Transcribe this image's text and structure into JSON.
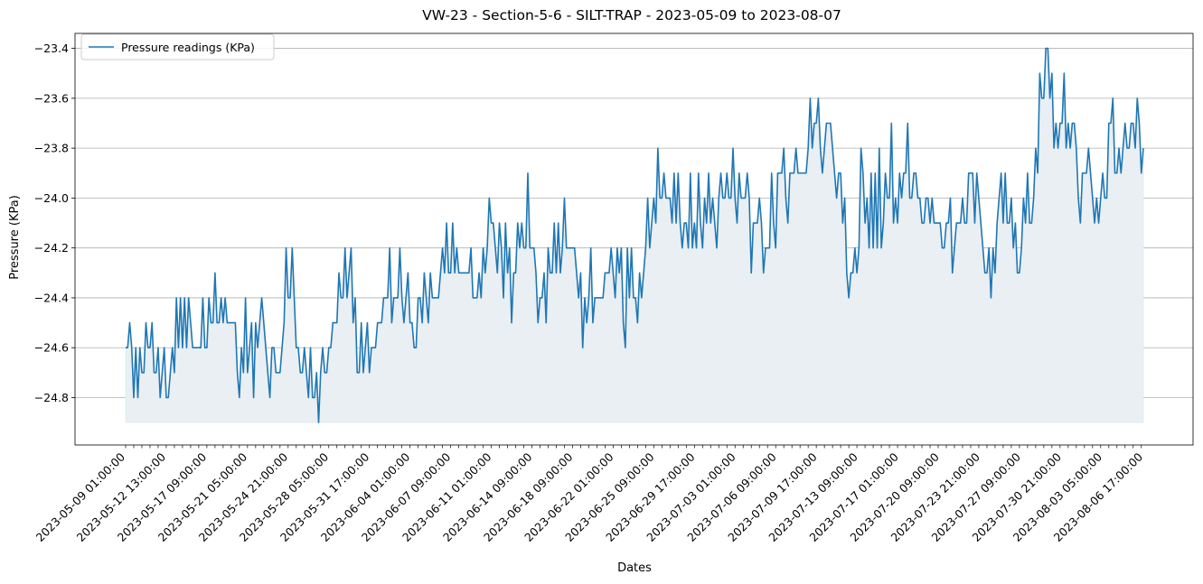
{
  "chart_data": {
    "type": "line",
    "title": "VW-23 - Section-5-6 - SILT-TRAP - 2023-05-09 to 2023-08-07",
    "xlabel": "Dates",
    "ylabel": "Pressure (KPa)",
    "legend_position": "top-left",
    "grid": "horizontal",
    "fill_below": true,
    "ylim": [
      -24.99,
      -23.34
    ],
    "yticks": [
      -24.8,
      -24.6,
      -24.4,
      -24.2,
      -24.0,
      -23.8,
      -23.6,
      -23.4
    ],
    "ytick_labels": [
      "−24.8",
      "−24.6",
      "−24.4",
      "−24.2",
      "−24.0",
      "−23.8",
      "−23.6",
      "−23.4"
    ],
    "xtick_labels": [
      "2023-05-09 01:00:00",
      "2023-05-12 13:00:00",
      "2023-05-17 09:00:00",
      "2023-05-21 05:00:00",
      "2023-05-24 21:00:00",
      "2023-05-28 05:00:00",
      "2023-05-31 17:00:00",
      "2023-06-04 01:00:00",
      "2023-06-07 09:00:00",
      "2023-06-11 01:00:00",
      "2023-06-14 09:00:00",
      "2023-06-18 09:00:00",
      "2023-06-22 01:00:00",
      "2023-06-25 09:00:00",
      "2023-06-29 17:00:00",
      "2023-07-03 01:00:00",
      "2023-07-06 09:00:00",
      "2023-07-09 17:00:00",
      "2023-07-13 09:00:00",
      "2023-07-17 01:00:00",
      "2023-07-20 09:00:00",
      "2023-07-23 21:00:00",
      "2023-07-27 09:00:00",
      "2023-07-30 21:00:00",
      "2023-08-03 05:00:00",
      "2023-08-06 17:00:00"
    ],
    "colors": {
      "line": "#1f77b4",
      "fill": "#e9eff2",
      "grid": "#b0b0b0"
    },
    "series": [
      {
        "name": "Pressure readings (KPa)",
        "values": [
          -24.6,
          -24.6,
          -24.5,
          -24.6,
          -24.8,
          -24.6,
          -24.8,
          -24.6,
          -24.7,
          -24.7,
          -24.5,
          -24.6,
          -24.6,
          -24.5,
          -24.7,
          -24.7,
          -24.6,
          -24.8,
          -24.7,
          -24.6,
          -24.8,
          -24.8,
          -24.7,
          -24.6,
          -24.7,
          -24.4,
          -24.6,
          -24.4,
          -24.6,
          -24.4,
          -24.6,
          -24.4,
          -24.5,
          -24.6,
          -24.6,
          -24.6,
          -24.6,
          -24.6,
          -24.4,
          -24.6,
          -24.6,
          -24.4,
          -24.5,
          -24.5,
          -24.3,
          -24.5,
          -24.5,
          -24.4,
          -24.5,
          -24.4,
          -24.5,
          -24.5,
          -24.5,
          -24.5,
          -24.5,
          -24.7,
          -24.8,
          -24.6,
          -24.7,
          -24.4,
          -24.7,
          -24.6,
          -24.5,
          -24.8,
          -24.5,
          -24.6,
          -24.5,
          -24.4,
          -24.5,
          -24.6,
          -24.7,
          -24.8,
          -24.6,
          -24.6,
          -24.7,
          -24.7,
          -24.7,
          -24.6,
          -24.5,
          -24.2,
          -24.4,
          -24.4,
          -24.2,
          -24.4,
          -24.6,
          -24.6,
          -24.7,
          -24.7,
          -24.6,
          -24.7,
          -24.8,
          -24.6,
          -24.8,
          -24.8,
          -24.7,
          -24.9,
          -24.7,
          -24.6,
          -24.7,
          -24.7,
          -24.6,
          -24.6,
          -24.5,
          -24.5,
          -24.5,
          -24.3,
          -24.4,
          -24.4,
          -24.2,
          -24.4,
          -24.3,
          -24.2,
          -24.5,
          -24.4,
          -24.7,
          -24.7,
          -24.5,
          -24.7,
          -24.6,
          -24.5,
          -24.7,
          -24.6,
          -24.6,
          -24.6,
          -24.5,
          -24.5,
          -24.5,
          -24.4,
          -24.4,
          -24.4,
          -24.2,
          -24.5,
          -24.4,
          -24.4,
          -24.4,
          -24.2,
          -24.4,
          -24.5,
          -24.4,
          -24.3,
          -24.5,
          -24.5,
          -24.6,
          -24.6,
          -24.4,
          -24.4,
          -24.5,
          -24.3,
          -24.4,
          -24.5,
          -24.3,
          -24.4,
          -24.4,
          -24.4,
          -24.4,
          -24.3,
          -24.2,
          -24.3,
          -24.1,
          -24.3,
          -24.3,
          -24.1,
          -24.3,
          -24.2,
          -24.3,
          -24.3,
          -24.3,
          -24.3,
          -24.3,
          -24.3,
          -24.2,
          -24.4,
          -24.4,
          -24.4,
          -24.3,
          -24.4,
          -24.2,
          -24.3,
          -24.2,
          -24.0,
          -24.1,
          -24.1,
          -24.2,
          -24.3,
          -24.1,
          -24.2,
          -24.4,
          -24.1,
          -24.3,
          -24.2,
          -24.5,
          -24.3,
          -24.3,
          -24.1,
          -24.2,
          -24.1,
          -24.2,
          -24.2,
          -23.9,
          -24.2,
          -24.2,
          -24.2,
          -24.3,
          -24.5,
          -24.4,
          -24.4,
          -24.3,
          -24.5,
          -24.2,
          -24.3,
          -24.3,
          -24.1,
          -24.3,
          -24.1,
          -24.3,
          -24.2,
          -24.0,
          -24.2,
          -24.2,
          -24.2,
          -24.2,
          -24.2,
          -24.3,
          -24.4,
          -24.3,
          -24.6,
          -24.4,
          -24.5,
          -24.4,
          -24.2,
          -24.5,
          -24.4,
          -24.4,
          -24.4,
          -24.4,
          -24.4,
          -24.3,
          -24.3,
          -24.3,
          -24.2,
          -24.3,
          -24.4,
          -24.2,
          -24.3,
          -24.2,
          -24.5,
          -24.6,
          -24.2,
          -24.4,
          -24.2,
          -24.4,
          -24.4,
          -24.5,
          -24.3,
          -24.4,
          -24.3,
          -24.2,
          -24.0,
          -24.2,
          -24.1,
          -24.0,
          -24.1,
          -23.8,
          -24.0,
          -24.0,
          -23.9,
          -24.0,
          -24.0,
          -24.0,
          -24.1,
          -23.9,
          -24.1,
          -23.9,
          -24.1,
          -24.2,
          -24.1,
          -24.1,
          -24.2,
          -23.9,
          -24.2,
          -24.1,
          -24.2,
          -23.9,
          -24.1,
          -24.2,
          -24.0,
          -24.1,
          -23.9,
          -24.1,
          -24.0,
          -24.1,
          -24.2,
          -24.0,
          -23.9,
          -24.0,
          -24.0,
          -23.9,
          -24.0,
          -24.0,
          -23.8,
          -24.0,
          -24.1,
          -23.9,
          -24.0,
          -24.0,
          -24.0,
          -23.9,
          -24.0,
          -24.3,
          -24.1,
          -24.1,
          -24.1,
          -24.0,
          -24.1,
          -24.3,
          -24.2,
          -24.2,
          -24.2,
          -23.9,
          -24.1,
          -24.2,
          -23.9,
          -23.9,
          -23.9,
          -23.8,
          -24.0,
          -24.1,
          -23.9,
          -23.9,
          -23.9,
          -23.8,
          -23.9,
          -23.9,
          -23.9,
          -23.9,
          -23.9,
          -23.8,
          -23.6,
          -23.8,
          -23.7,
          -23.7,
          -23.6,
          -23.8,
          -23.9,
          -23.8,
          -23.7,
          -23.7,
          -23.7,
          -23.8,
          -23.9,
          -24.0,
          -23.9,
          -23.9,
          -24.1,
          -24.0,
          -24.3,
          -24.4,
          -24.3,
          -24.3,
          -24.2,
          -24.3,
          -24.2,
          -23.8,
          -23.9,
          -24.1,
          -24.0,
          -24.2,
          -23.9,
          -24.2,
          -23.9,
          -24.2,
          -23.8,
          -24.2,
          -24.1,
          -23.9,
          -24.0,
          -24.0,
          -23.7,
          -24.1,
          -24.0,
          -24.1,
          -23.9,
          -24.0,
          -23.9,
          -23.9,
          -23.7,
          -24.0,
          -24.0,
          -23.9,
          -23.9,
          -24.0,
          -24.0,
          -24.1,
          -24.1,
          -24.0,
          -24.0,
          -24.1,
          -24.0,
          -24.1,
          -24.1,
          -24.1,
          -24.1,
          -24.2,
          -24.2,
          -24.1,
          -24.1,
          -24.0,
          -24.3,
          -24.2,
          -24.1,
          -24.1,
          -24.1,
          -24.0,
          -24.1,
          -24.1,
          -23.9,
          -23.9,
          -23.9,
          -24.1,
          -23.9,
          -24.0,
          -24.1,
          -24.2,
          -24.3,
          -24.3,
          -24.2,
          -24.4,
          -24.2,
          -24.3,
          -24.1,
          -24.0,
          -23.9,
          -24.1,
          -23.9,
          -24.1,
          -24.1,
          -24.0,
          -24.2,
          -24.1,
          -24.3,
          -24.3,
          -24.2,
          -24.0,
          -24.1,
          -23.9,
          -24.1,
          -24.1,
          -24.0,
          -23.8,
          -23.9,
          -23.5,
          -23.6,
          -23.6,
          -23.4,
          -23.4,
          -23.6,
          -23.5,
          -23.8,
          -23.7,
          -23.8,
          -23.7,
          -23.7,
          -23.5,
          -23.8,
          -23.7,
          -23.8,
          -23.7,
          -23.7,
          -23.8,
          -24.0,
          -24.1,
          -23.9,
          -23.9,
          -23.9,
          -23.8,
          -23.9,
          -24.0,
          -24.1,
          -24.0,
          -24.1,
          -24.0,
          -23.9,
          -24.0,
          -24.0,
          -23.7,
          -23.7,
          -23.6,
          -23.9,
          -23.9,
          -23.8,
          -23.9,
          -23.8,
          -23.7,
          -23.8,
          -23.8,
          -23.7,
          -23.7,
          -23.8,
          -23.6,
          -23.7,
          -23.9,
          -23.8
        ]
      }
    ]
  }
}
